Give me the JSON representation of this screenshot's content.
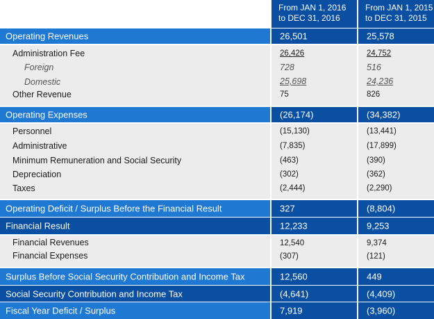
{
  "header": {
    "col1": [
      "From JAN 1, 2016",
      "to DEC 31, 2016"
    ],
    "col2": [
      "From JAN 1, 2015",
      "to DEC 31, 2015"
    ]
  },
  "rows": {
    "operating_revenues": {
      "label": "Operating Revenues",
      "v2016": "26,501",
      "v2015": "25,578"
    },
    "revenue_details": [
      {
        "label": "Administration Fee",
        "v2016": "26,426",
        "v2015": "24,752"
      },
      {
        "label": "Foreign",
        "v2016": "728",
        "v2015": "516"
      },
      {
        "label": "Domestic",
        "v2016": "25,698",
        "v2015": "24,236"
      },
      {
        "label": "Other Revenue",
        "v2016": "75",
        "v2015": "826"
      }
    ],
    "operating_expenses": {
      "label": "Operating Expenses",
      "v2016": "(26,174)",
      "v2015": "(34,382)"
    },
    "expense_details": [
      {
        "label": "Personnel",
        "v2016": "(15,130)",
        "v2015": "(13,441)"
      },
      {
        "label": "Administrative",
        "v2016": "(7,835)",
        "v2015": "(17,899)"
      },
      {
        "label": "Minimum Remuneration and Social Security",
        "v2016": "(463)",
        "v2015": "(390)"
      },
      {
        "label": "Depreciation",
        "v2016": "(302)",
        "v2015": "(362)"
      },
      {
        "label": "Taxes",
        "v2016": "(2,444)",
        "v2015": "(2,290)"
      }
    ],
    "operating_result": {
      "label": "Operating Deficit / Surplus Before the Financial Result",
      "v2016": "327",
      "v2015": "(8,804)"
    },
    "financial_result": {
      "label": "Financial Result",
      "v2016": "12,233",
      "v2015": "9,253"
    },
    "financial_details": [
      {
        "label": "Financial Revenues",
        "v2016": "12,540",
        "v2015": "9,374"
      },
      {
        "label": "Financial Expenses",
        "v2016": "(307)",
        "v2015": "(121)"
      }
    ],
    "surplus_before_tax": {
      "label": "Surplus Before Social Security Contribution and Income Tax",
      "v2016": "12,560",
      "v2015": "449"
    },
    "social_security_tax": {
      "label": "Social Security Contribution and Income Tax",
      "v2016": "(4,641)",
      "v2015": "(4,409)"
    },
    "fiscal_year_result": {
      "label": "Fiscal Year Deficit / Surplus",
      "v2016": "7,919",
      "v2015": "(3,960)"
    }
  },
  "colors": {
    "dark_blue": "#0a4fa1",
    "mid_blue": "#1f78d1",
    "light_gray": "#ececec"
  }
}
